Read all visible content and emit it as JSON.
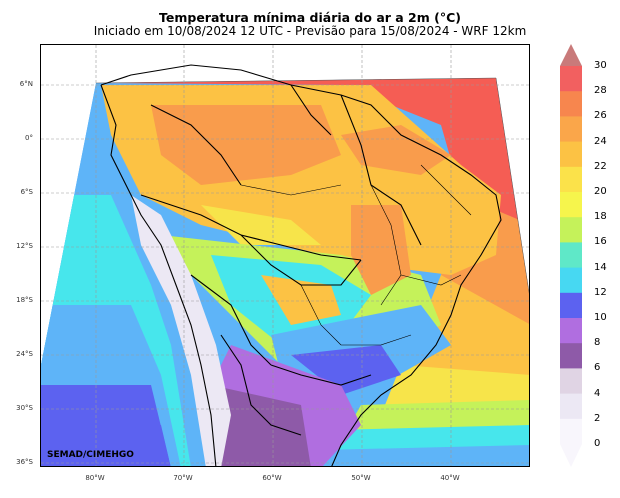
{
  "header": {
    "title": "Temperatura mínima diária do ar a 2m (°C)",
    "subtitle": "Iniciado em 10/08/2024 12 UTC - Previsão para 15/08/2024 - WRF 12km"
  },
  "map": {
    "credit": "SEMAD/CIMEHGO",
    "lat_labels": [
      "6°N",
      "0°",
      "6°S",
      "12°S",
      "18°S",
      "24°S",
      "30°S",
      "36°S"
    ],
    "lon_labels": [
      "80°W",
      "70°W",
      "60°W",
      "50°W",
      "40°W"
    ],
    "colors": {
      "ocean_north": "#f55d54",
      "warm": "#f99c4c",
      "mild": "#fcc244",
      "cool": "#f7e44a",
      "cold_green": "#bff25a",
      "cyan": "#47e6ec",
      "blue": "#5eb4f8",
      "deep_blue": "#5c62f0",
      "purple": "#b06ee0",
      "dark_purple": "#8e5aa8"
    }
  },
  "colorbar": {
    "labels": [
      "30",
      "28",
      "26",
      "24",
      "22",
      "20",
      "18",
      "16",
      "14",
      "12",
      "10",
      "8",
      "6",
      "4",
      "2",
      "0"
    ],
    "colors": [
      "#c97a7a",
      "#f26060",
      "#f7864e",
      "#faa64a",
      "#fcc244",
      "#fbe24a",
      "#f6f54c",
      "#c5f25a",
      "#5fe8c8",
      "#47d8f2",
      "#5c62f0",
      "#b06ee0",
      "#8e5aa8",
      "#e0d4e4",
      "#ece8f4",
      "#f8f6fc"
    ]
  }
}
